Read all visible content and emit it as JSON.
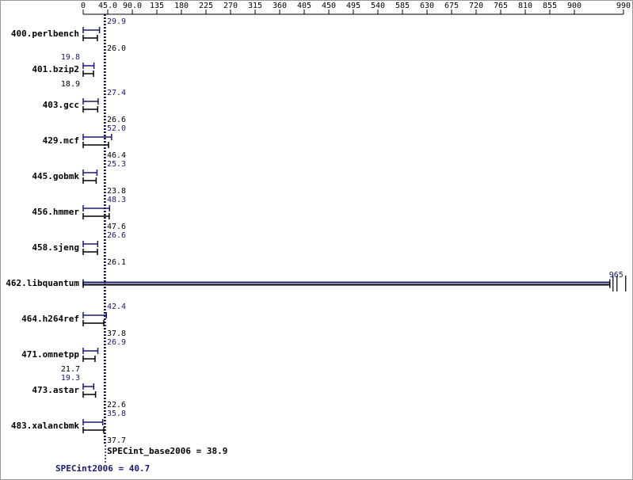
{
  "chart_data": {
    "type": "bar",
    "orientation": "horizontal",
    "categories": [
      "400.perlbench",
      "401.bzip2",
      "403.gcc",
      "429.mcf",
      "445.gobmk",
      "456.hmmer",
      "458.sjeng",
      "462.libquantum",
      "464.h264ref",
      "471.omnetpp",
      "473.astar",
      "483.xalancbmk"
    ],
    "series": [
      {
        "color": "#191970",
        "values": [
          29.9,
          19.8,
          27.4,
          52.0,
          25.3,
          48.3,
          26.6,
          965,
          42.4,
          26.9,
          19.3,
          35.8
        ],
        "value_labels": [
          "29.9",
          "19.8",
          "27.4",
          "52.0",
          "25.3",
          "48.3",
          "26.6",
          "965",
          "42.4",
          "26.9",
          "19.3",
          "35.8"
        ]
      },
      {
        "color": "#000000",
        "values": [
          26.0,
          18.9,
          26.6,
          46.4,
          23.8,
          47.6,
          26.1,
          965,
          37.8,
          21.7,
          22.6,
          37.7
        ],
        "value_labels": [
          "26.0",
          "18.9",
          "26.6",
          "46.4",
          "23.8",
          "47.6",
          "26.1",
          null,
          "37.8",
          "21.7",
          "22.6",
          "37.7"
        ]
      }
    ],
    "xlim": [
      0,
      990
    ],
    "xticks": [
      0,
      {
        "value": 45,
        "label": "45.0"
      },
      {
        "value": 90,
        "label": "90.0"
      },
      135,
      180,
      225,
      270,
      315,
      360,
      405,
      450,
      495,
      540,
      585,
      630,
      675,
      720,
      765,
      810,
      855,
      900,
      990
    ],
    "summary": [
      {
        "label": "SPECint_base2006 = 38.9",
        "value": 38.9,
        "color": "#000000"
      },
      {
        "label": "SPECint2006 = 40.7",
        "value": 40.7,
        "color": "#191970"
      }
    ]
  }
}
